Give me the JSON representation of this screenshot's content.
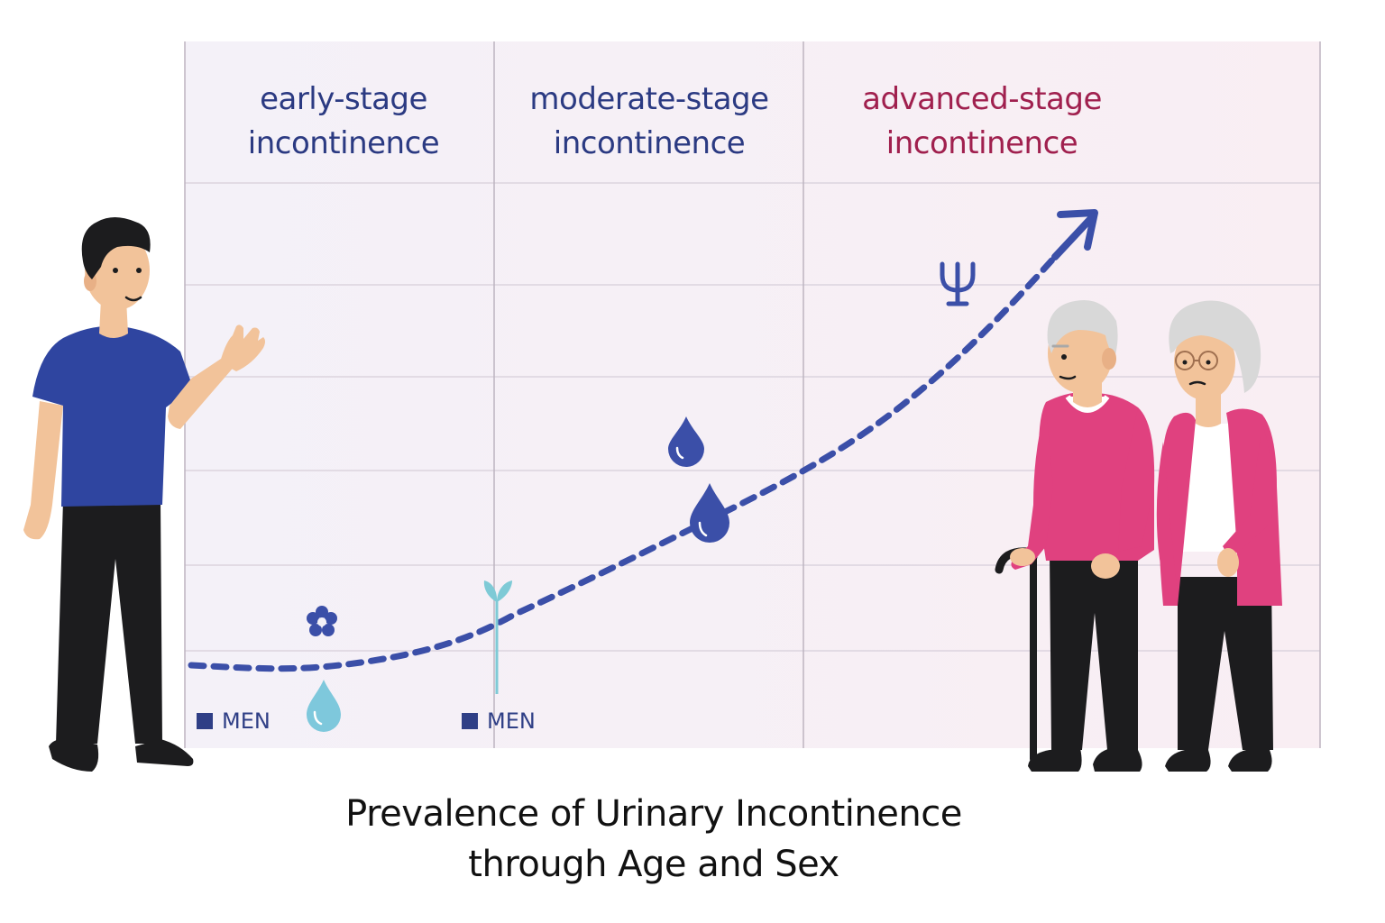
{
  "stages": [
    {
      "line1": "early-stage",
      "line2": "incontinence",
      "color": "#2b3a82"
    },
    {
      "line1": "moderate-stage",
      "line2": "incontinence",
      "color": "#2b3a82"
    },
    {
      "line1": "advanced-stage",
      "line2": "incontinence",
      "color": "#a0204e"
    }
  ],
  "legend": [
    {
      "label": "MEN"
    },
    {
      "label": "MEN"
    }
  ],
  "title": {
    "line1": "Prevalence of Urinary Incontinence",
    "line2": "through Age and Sex"
  },
  "colors": {
    "trend": "#3b4fa8",
    "navy": "#2f3f86",
    "light_drop": "#7ec8dc",
    "sprout": "#7ecad6",
    "magenta": "#e0417f",
    "shirt_blue": "#2f45a0"
  },
  "icons": [
    "flower-icon",
    "light-water-drop-icon",
    "sprout-icon",
    "water-drop-icon",
    "trophy-icon",
    "trend-arrow-icon"
  ]
}
